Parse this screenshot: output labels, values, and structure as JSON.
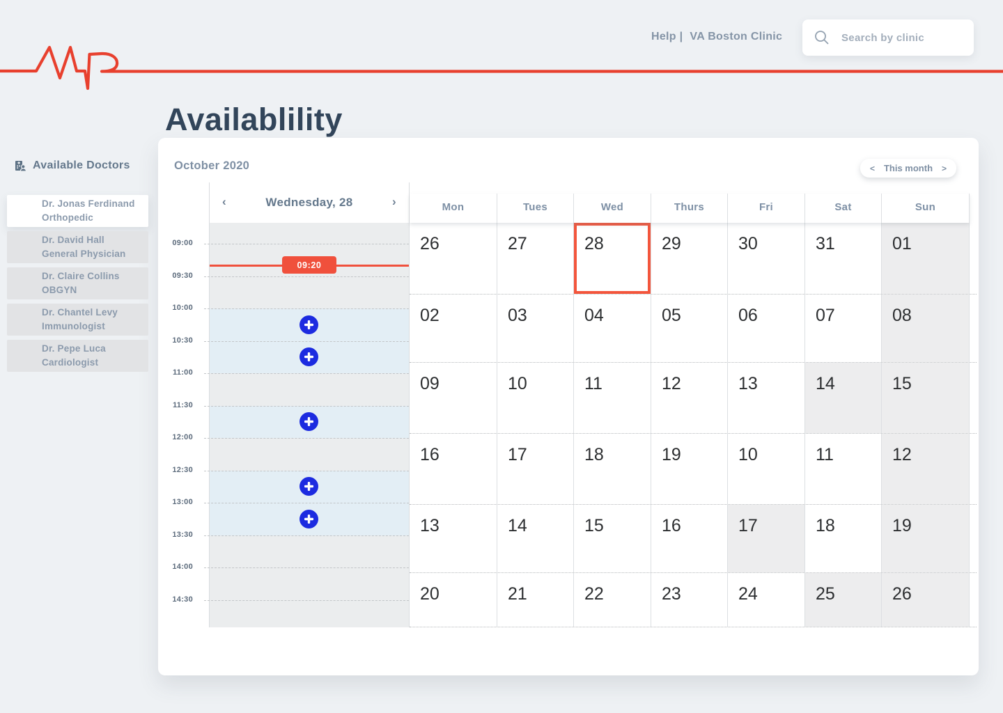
{
  "header": {
    "help_label": "Help |",
    "clinic_label": "VA Boston Clinic",
    "search_placeholder": "Search by clinic"
  },
  "title": "Availablility",
  "sidebar": {
    "header_label": "Available Doctors",
    "doctors": [
      {
        "name": "Dr. Jonas Ferdinand",
        "specialty": "Orthopedic",
        "selected": true
      },
      {
        "name": "Dr. David Hall",
        "specialty": "General Physician",
        "selected": false
      },
      {
        "name": "Dr. Claire Collins",
        "specialty": "OBGYN",
        "selected": false
      },
      {
        "name": "Dr. Chantel Levy",
        "specialty": "Immunologist",
        "selected": false
      },
      {
        "name": "Dr. Pepe Luca",
        "specialty": "Cardiologist",
        "selected": false
      }
    ]
  },
  "calendar": {
    "month_label": "October 2020",
    "month_nav": {
      "prev_icon": "<",
      "label": "This month",
      "next_icon": ">"
    },
    "day_view": {
      "prev_icon": "‹",
      "label": "Wednesday, 28",
      "next_icon": "›",
      "time_labels": [
        "09:00",
        "09:30",
        "10:00",
        "10:30",
        "11:00",
        "11:30",
        "12:00",
        "12:30",
        "13:00",
        "13:30",
        "14:00",
        "14:30"
      ],
      "current_time": "09:20",
      "available_ranges": [
        {
          "from": "10:00",
          "to": "11:00"
        },
        {
          "from": "11:30",
          "to": "12:00"
        },
        {
          "from": "12:30",
          "to": "13:30"
        }
      ],
      "add_slot_times": [
        "10:00",
        "10:30",
        "11:30",
        "12:30",
        "13:00"
      ]
    },
    "weekdays": [
      "Mon",
      "Tues",
      "Wed",
      "Thurs",
      "Fri",
      "Sat",
      "Sun"
    ],
    "weeks": [
      [
        "26",
        "27",
        "28",
        "29",
        "30",
        "31",
        "01"
      ],
      [
        "02",
        "03",
        "04",
        "05",
        "06",
        "07",
        "08"
      ],
      [
        "09",
        "10",
        "11",
        "12",
        "13",
        "14",
        "15"
      ],
      [
        "16",
        "17",
        "18",
        "19",
        "10",
        "11",
        "12"
      ],
      [
        "13",
        "14",
        "15",
        "16",
        "17",
        "18",
        "19"
      ],
      [
        "20",
        "21",
        "22",
        "23",
        "24",
        "25",
        "26"
      ]
    ],
    "selected_day": [
      0,
      2
    ],
    "muted_days": [
      [
        0,
        6
      ],
      [
        1,
        6
      ],
      [
        2,
        5
      ],
      [
        2,
        6
      ],
      [
        3,
        6
      ],
      [
        4,
        4
      ],
      [
        4,
        6
      ],
      [
        5,
        5
      ],
      [
        5,
        6
      ]
    ]
  },
  "colors": {
    "accent_red": "#f0503c",
    "accent_blue": "#1c2be0",
    "title_color": "#32455a",
    "label_gray": "#7e8fa3"
  }
}
